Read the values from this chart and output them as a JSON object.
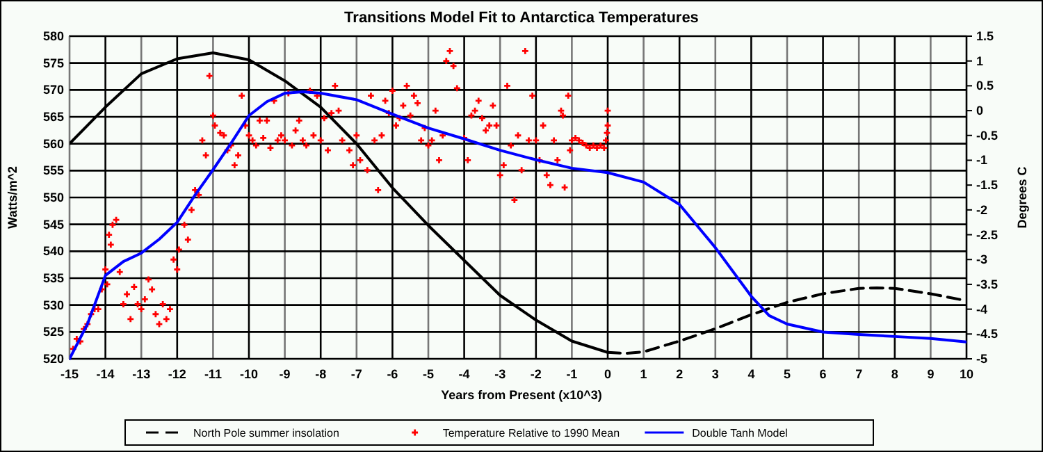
{
  "chart_data": {
    "type": "line",
    "title": "Transitions Model Fit to Antarctica Temperatures",
    "xlabel": "Years from Present (x10^3)",
    "ylabel": "Watts/m^2",
    "y2label": "Degrees C",
    "xlim": [
      -15,
      10
    ],
    "xticks": [
      -15,
      -14,
      -13,
      -12,
      -11,
      -10,
      -9,
      -8,
      -7,
      -6,
      -5,
      -4,
      -3,
      -2,
      -1,
      0,
      1,
      2,
      3,
      4,
      5,
      6,
      7,
      8,
      9,
      10
    ],
    "ylim": [
      520,
      580
    ],
    "yticks": [
      520,
      525,
      530,
      535,
      540,
      545,
      550,
      555,
      560,
      565,
      570,
      575,
      580
    ],
    "y2lim": [
      -5,
      1.5
    ],
    "y2ticks": [
      -5,
      -4.5,
      -4,
      -3.5,
      -3,
      -2.5,
      -2,
      -1.5,
      -1,
      -0.5,
      0,
      0.5,
      1,
      1.5
    ],
    "grid": true,
    "legend": "bottom",
    "series": [
      {
        "color": "#000000",
        "line_style": "solid",
        "x": [
          -15,
          -14.5,
          -14,
          -13,
          -12,
          -11,
          -10,
          -9,
          -8,
          -7,
          -6,
          -5,
          -4,
          -3,
          -2,
          -1,
          0
        ],
        "values": [
          560,
          563.4,
          566.8,
          573,
          575.8,
          576.9,
          575.6,
          571.7,
          566.8,
          560,
          551.8,
          544.8,
          538.3,
          531.8,
          527.2,
          523.3,
          521.2
        ]
      },
      {
        "name": "North Pole summer insolation",
        "color": "#000000",
        "line_style": "dashed",
        "x": [
          0,
          0.5,
          1,
          2,
          3,
          4,
          5,
          6,
          7,
          7.5,
          8,
          9,
          10
        ],
        "values": [
          521.2,
          521.0,
          521.3,
          523.3,
          525.6,
          528.2,
          530.5,
          532.1,
          533.1,
          533.2,
          533.1,
          532.1,
          530.8
        ]
      },
      {
        "type": "scatter",
        "name": "Temperature Relative to 1990 Mean",
        "color": "#ff0000",
        "axis": "y2",
        "marker": "cross",
        "x": [
          -14.9,
          -14.8,
          -14.7,
          -14.6,
          -14.5,
          -14.4,
          -14.3,
          -14.2,
          -14.1,
          -14.0,
          -13.95,
          -13.9,
          -13.85,
          -13.8,
          -13.7,
          -13.6,
          -13.5,
          -13.4,
          -13.3,
          -13.2,
          -13.1,
          -13.0,
          -12.9,
          -12.8,
          -12.7,
          -12.6,
          -12.5,
          -12.4,
          -12.3,
          -12.2,
          -12.1,
          -12.0,
          -11.95,
          -11.8,
          -11.7,
          -11.6,
          -11.5,
          -11.4,
          -11.3,
          -11.2,
          -11.1,
          -11.0,
          -10.95,
          -10.8,
          -10.7,
          -10.6,
          -10.5,
          -10.4,
          -10.3,
          -10.2,
          -10.1,
          -10.0,
          -9.9,
          -9.8,
          -9.7,
          -9.6,
          -9.5,
          -9.4,
          -9.3,
          -9.2,
          -9.1,
          -9.0,
          -8.9,
          -8.8,
          -8.7,
          -8.6,
          -8.5,
          -8.4,
          -8.3,
          -8.2,
          -8.1,
          -8.0,
          -7.9,
          -7.8,
          -7.7,
          -7.6,
          -7.5,
          -7.4,
          -7.2,
          -7.1,
          -7.0,
          -6.9,
          -6.7,
          -6.6,
          -6.5,
          -6.4,
          -6.3,
          -6.2,
          -6.1,
          -6.0,
          -5.9,
          -5.8,
          -5.7,
          -5.6,
          -5.5,
          -5.4,
          -5.3,
          -5.2,
          -5.1,
          -5.0,
          -4.9,
          -4.8,
          -4.7,
          -4.6,
          -4.5,
          -4.4,
          -4.3,
          -4.2,
          -4.0,
          -3.9,
          -3.8,
          -3.7,
          -3.6,
          -3.5,
          -3.4,
          -3.3,
          -3.2,
          -3.1,
          -3.0,
          -2.9,
          -2.8,
          -2.7,
          -2.6,
          -2.5,
          -2.4,
          -2.3,
          -2.2,
          -2.1,
          -2.0,
          -1.9,
          -1.8,
          -1.7,
          -1.6,
          -1.5,
          -1.4,
          -1.3,
          -1.25,
          -1.2,
          -1.1,
          -1.05,
          -1.0,
          -0.9,
          -0.8,
          -0.7,
          -0.6,
          -0.5,
          -0.4,
          -0.3,
          -0.2,
          -0.1,
          -0.05,
          -0.02,
          0,
          0
        ],
        "values": [
          -4.8,
          -4.6,
          -4.65,
          -4.4,
          -4.3,
          -4.1,
          -4.0,
          -4.0,
          -3.6,
          -3.2,
          -3.5,
          -2.5,
          -2.7,
          -2.3,
          -2.2,
          -3.25,
          -3.9,
          -3.7,
          -4.2,
          -3.55,
          -3.9,
          -4.0,
          -3.8,
          -3.4,
          -3.6,
          -4.1,
          -4.3,
          -3.9,
          -4.2,
          -4.0,
          -3.0,
          -3.2,
          -2.8,
          -2.3,
          -2.6,
          -2.0,
          -1.6,
          -1.7,
          -0.6,
          -0.9,
          0.7,
          -0.1,
          -0.3,
          -0.45,
          -0.5,
          -0.8,
          -0.7,
          -1.1,
          -0.9,
          0.3,
          -0.3,
          -0.5,
          -0.6,
          -0.7,
          -0.2,
          -0.55,
          -0.2,
          -0.75,
          0.2,
          -0.6,
          -0.5,
          -0.6,
          0.35,
          -0.7,
          -0.4,
          -0.2,
          -0.6,
          -0.7,
          0.4,
          -0.5,
          0.3,
          -0.6,
          -0.15,
          -0.8,
          -0.05,
          0.5,
          0.0,
          -0.6,
          -0.8,
          -1.1,
          -0.5,
          -1.0,
          -1.2,
          0.3,
          -0.6,
          -1.6,
          -0.5,
          0.2,
          -0.05,
          0.4,
          -0.3,
          -0.15,
          0.1,
          0.5,
          -0.1,
          0.3,
          0.15,
          -0.6,
          -0.35,
          -0.7,
          -0.6,
          0.0,
          -1.0,
          -0.5,
          1.0,
          1.2,
          0.9,
          0.45,
          -0.55,
          -1.0,
          -0.1,
          0.0,
          0.2,
          -0.15,
          -0.4,
          -0.3,
          0.1,
          -0.3,
          -1.3,
          -1.1,
          0.5,
          -0.7,
          -1.8,
          -0.5,
          -1.2,
          1.2,
          -0.6,
          0.3,
          -0.6,
          -1.0,
          -0.3,
          -1.3,
          -1.5,
          -0.6,
          -1.0,
          0.0,
          -0.1,
          -1.55,
          0.3,
          -0.8,
          -0.6,
          -0.55,
          -0.6,
          -0.65,
          -0.7,
          -0.75,
          -0.7,
          -0.75,
          -0.7,
          -0.75,
          -0.6,
          -0.45,
          -0.3,
          0.0
        ]
      },
      {
        "name": "Double Tanh Model",
        "color": "#0000ff",
        "axis": "y2",
        "line_style": "solid",
        "x": [
          -15,
          -14.5,
          -14,
          -13.5,
          -13,
          -12.5,
          -12,
          -11.5,
          -11,
          -10.5,
          -10,
          -9.5,
          -9,
          -8.5,
          -8,
          -7,
          -6,
          -5,
          -4,
          -3,
          -2,
          -1,
          0,
          1,
          2,
          3,
          4,
          4.5,
          5,
          6,
          7,
          8,
          9,
          10
        ],
        "values": [
          -5,
          -4.3,
          -3.32,
          -3.04,
          -2.87,
          -2.59,
          -2.25,
          -1.7,
          -1.19,
          -0.66,
          -0.1,
          0.18,
          0.35,
          0.38,
          0.35,
          0.22,
          -0.07,
          -0.35,
          -0.57,
          -0.8,
          -0.99,
          -1.16,
          -1.25,
          -1.44,
          -1.89,
          -2.76,
          -3.74,
          -4.13,
          -4.3,
          -4.46,
          -4.51,
          -4.55,
          -4.59,
          -4.66
        ]
      }
    ]
  }
}
